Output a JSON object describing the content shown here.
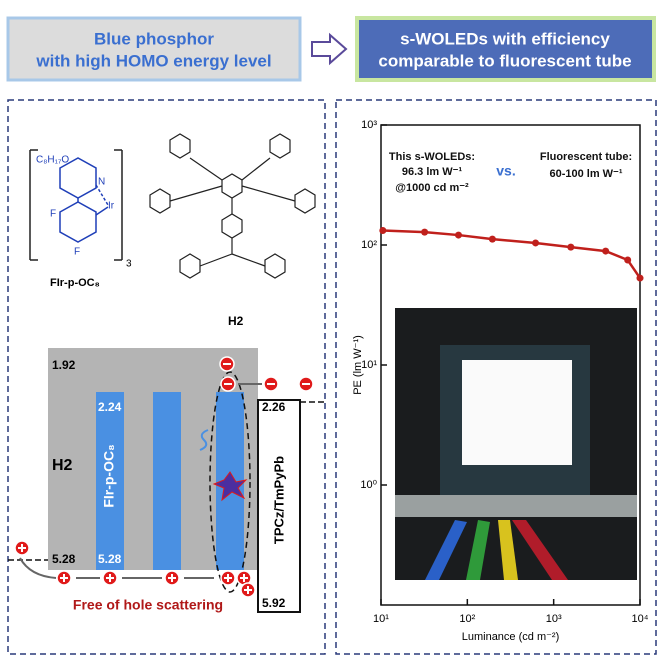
{
  "header": {
    "left_lines": [
      "Blue phosphor",
      "with high HOMO energy level"
    ],
    "right_lines": [
      "s-WOLEDs with efficiency",
      "comparable to fluorescent tube"
    ]
  },
  "molecules": {
    "complex": {
      "label": "FIr-p-OC₈",
      "substituent": "C₈H₁₇O",
      "atoms": [
        "N",
        "F",
        "F",
        "Ir"
      ],
      "count": 3
    },
    "host": {
      "label": "H2"
    }
  },
  "energy_diagram": {
    "host": {
      "label": "H2",
      "lumo": 1.92,
      "homo": 5.28
    },
    "dopant": {
      "label": "FIr-p-OC₈",
      "lumo": 2.24,
      "homo": 5.28
    },
    "etl": {
      "label": "TPCz/TmPyPb",
      "lumo": 2.26,
      "homo": 5.92
    },
    "caption": "Free of hole scattering"
  },
  "chart_data": {
    "type": "line",
    "xlabel": "Luminance (cd m⁻²)",
    "ylabel": "PE (lm W⁻¹)",
    "xscale": "log",
    "yscale": "log",
    "x": [
      10.5,
      32,
      79,
      195,
      617,
      1580,
      4000,
      7200,
      10000
    ],
    "values": [
      132,
      128,
      121,
      112,
      104,
      96,
      89,
      75,
      53
    ],
    "color": "#c0201c",
    "xlim": [
      10,
      10000
    ],
    "ylim": [
      0.1,
      1000
    ],
    "xticks": [
      {
        "value": 10,
        "label": "10¹"
      },
      {
        "value": 100,
        "label": "10²"
      },
      {
        "value": 1000,
        "label": "10³"
      },
      {
        "value": 10000,
        "label": "10⁴"
      }
    ],
    "yticks": [
      {
        "value": 1,
        "label": "10⁰"
      },
      {
        "value": 10,
        "label": "10¹"
      },
      {
        "value": 100,
        "label": "10²"
      },
      {
        "value": 1000,
        "label": "10³"
      }
    ],
    "annotations": [
      "This s-WOLEDs:",
      "96.3 lm W⁻¹",
      "@1000 cd m⁻²",
      "vs.",
      "Fluorescent tube:",
      "60-100 lm W⁻¹"
    ]
  }
}
